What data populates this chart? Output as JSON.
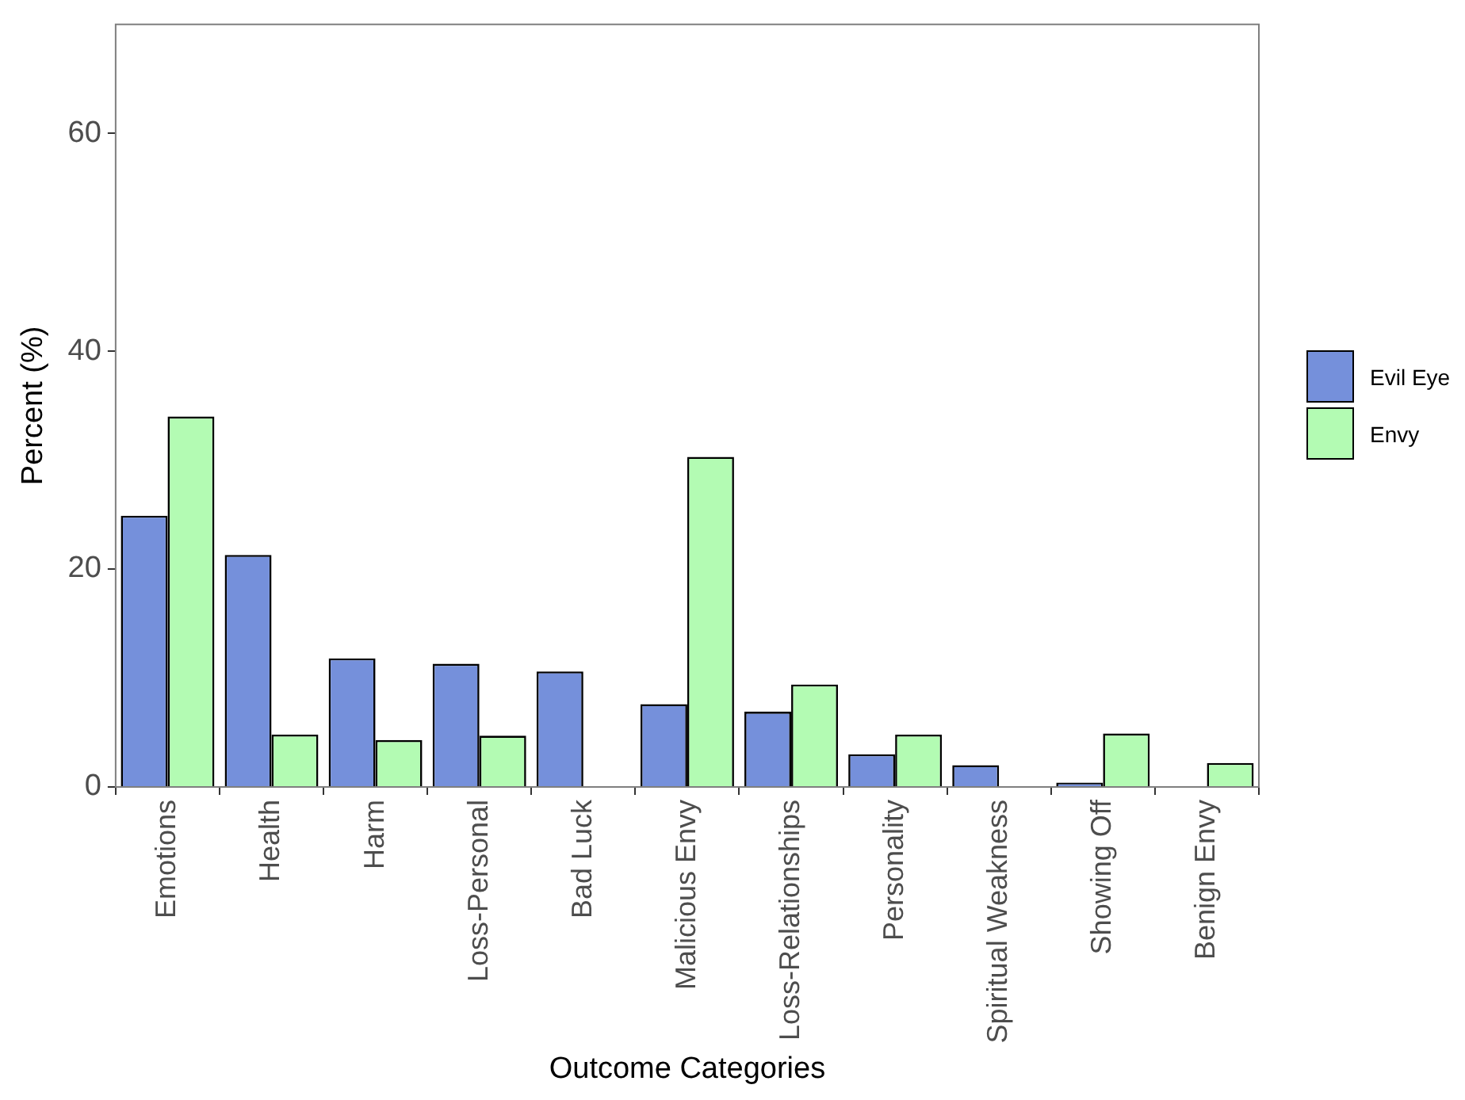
{
  "chart_data": {
    "type": "bar",
    "xlabel": "Outcome Categories",
    "ylabel": "Percent (%)",
    "categories": [
      "Emotions",
      "Health",
      "Harm",
      "Loss-Personal",
      "Bad Luck",
      "Malicious Envy",
      "Loss-Relationships",
      "Personality",
      "Spiritual Weakness",
      "Showing Off",
      "Benign Envy"
    ],
    "series": [
      {
        "name": "Evil Eye",
        "color": "#7590db",
        "values": [
          24.9,
          21.3,
          11.8,
          11.3,
          10.6,
          7.6,
          6.9,
          3.0,
          2.0,
          0.4,
          0
        ]
      },
      {
        "name": "Envy",
        "color": "#b3fbb3",
        "values": [
          34.0,
          4.8,
          4.3,
          4.7,
          0,
          30.3,
          9.4,
          4.8,
          null,
          4.9,
          2.2
        ]
      }
    ],
    "ylim": [
      0,
      70
    ],
    "yticks": [
      0,
      20,
      40,
      60
    ],
    "grid": false,
    "legend": "right"
  }
}
